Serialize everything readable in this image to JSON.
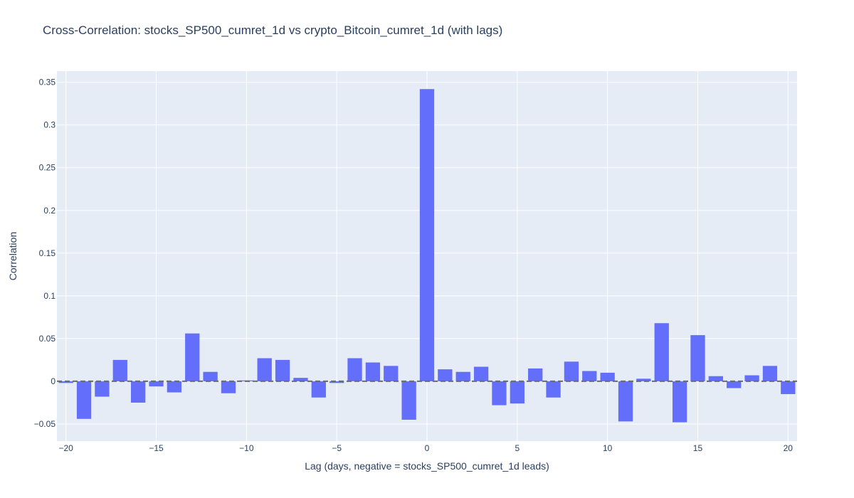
{
  "chart_data": {
    "type": "bar",
    "title": "Cross-Correlation: stocks_SP500_cumret_1d vs crypto_Bitcoin_cumret_1d (with lags)",
    "xlabel": "Lag (days, negative = stocks_SP500_cumret_1d leads)",
    "ylabel": "Correlation",
    "x": [
      -20,
      -19,
      -18,
      -17,
      -16,
      -15,
      -14,
      -13,
      -12,
      -11,
      -10,
      -9,
      -8,
      -7,
      -6,
      -5,
      -4,
      -3,
      -2,
      -1,
      0,
      1,
      2,
      3,
      4,
      5,
      6,
      7,
      8,
      9,
      10,
      11,
      12,
      13,
      14,
      15,
      16,
      17,
      18,
      19,
      20
    ],
    "values": [
      -0.002,
      -0.044,
      -0.018,
      0.025,
      -0.025,
      -0.006,
      -0.013,
      0.056,
      0.011,
      -0.014,
      0.001,
      0.027,
      0.025,
      0.004,
      -0.019,
      -0.002,
      0.027,
      0.022,
      0.018,
      -0.045,
      0.342,
      0.014,
      0.011,
      0.017,
      -0.028,
      -0.026,
      0.015,
      -0.019,
      0.023,
      0.012,
      0.01,
      -0.047,
      0.003,
      0.068,
      -0.048,
      0.054,
      0.006,
      -0.008,
      0.007,
      0.018,
      -0.015
    ],
    "xlim": [
      -20.5,
      20.5
    ],
    "ylim": [
      -0.07,
      0.363
    ],
    "x_ticks": [
      -20,
      -15,
      -10,
      -5,
      0,
      5,
      10,
      15,
      20
    ],
    "x_tick_labels": [
      "−20",
      "−15",
      "−10",
      "−5",
      "0",
      "5",
      "10",
      "15",
      "20"
    ],
    "y_ticks": [
      -0.05,
      0,
      0.05,
      0.1,
      0.15,
      0.2,
      0.25,
      0.3,
      0.35
    ],
    "y_tick_labels": [
      "−0.05",
      "0",
      "0.05",
      "0.1",
      "0.15",
      "0.2",
      "0.25",
      "0.3",
      "0.35"
    ],
    "grid": true,
    "zero_line": "dashed",
    "colors": {
      "bar": "#636efa",
      "plot_background": "#e5ecf6",
      "grid": "#ffffff",
      "text": "#2a3f5f",
      "zero_line": "#6b6b6b"
    }
  }
}
